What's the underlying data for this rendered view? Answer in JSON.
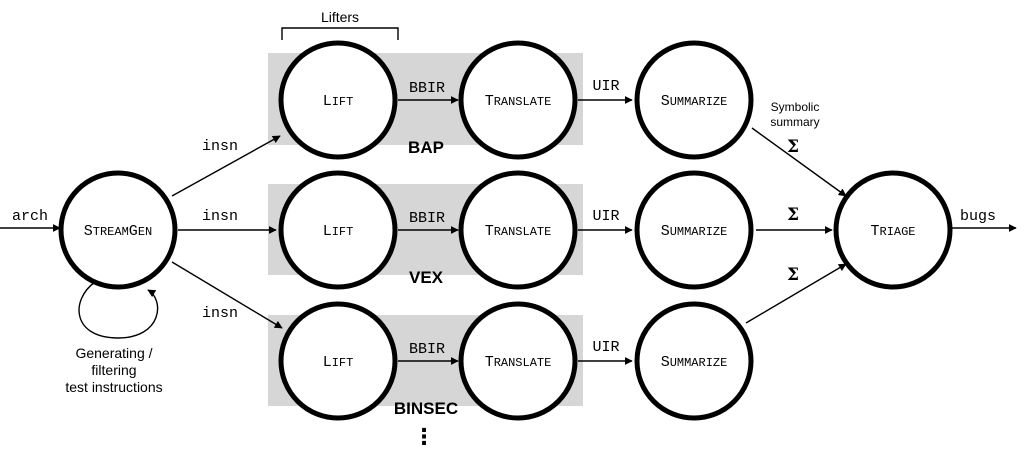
{
  "labels": {
    "lifters": "Lifters",
    "symbolic_summary_1": "Symbolic",
    "symbolic_summary_2": "summary",
    "generating_1": "Generating /",
    "generating_2": "filtering",
    "generating_3": "test instructions",
    "ellipsis": "⋮"
  },
  "io": {
    "input": "arch",
    "output": "bugs"
  },
  "nodes": {
    "streamgen": {
      "cap1": "S",
      "rest1": "TREAM",
      "cap2": "G",
      "rest2": "EN"
    },
    "lift": {
      "cap": "L",
      "rest": "IFT"
    },
    "translate": {
      "cap": "T",
      "rest": "RANSLATE"
    },
    "summarize": {
      "cap": "S",
      "rest": "UMMARIZE"
    },
    "triage": {
      "cap": "T",
      "rest": "RIAGE"
    }
  },
  "edges": {
    "insn": "insn",
    "bbir": "BBIR",
    "uir": "UIR",
    "sigma": "Σ"
  },
  "pipelines": [
    {
      "name": "BAP"
    },
    {
      "name": "VEX"
    },
    {
      "name": "BINSEC"
    }
  ]
}
